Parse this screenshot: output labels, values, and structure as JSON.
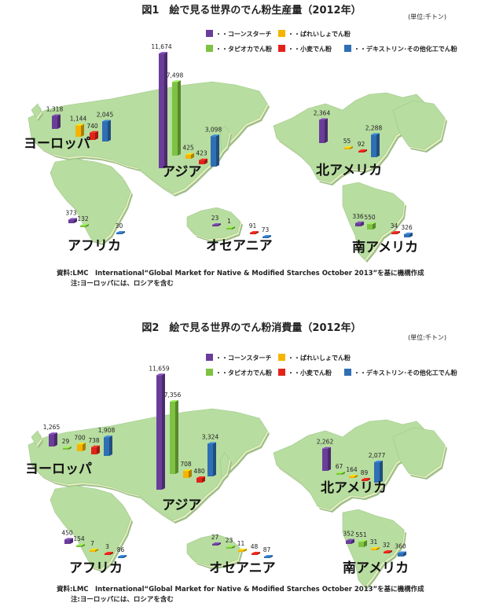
{
  "colors": {
    "corn": "#6a3d9a",
    "potato": "#f5b400",
    "tapioca": "#7dc242",
    "wheat": "#e2231a",
    "dextrin": "#2f6fb5",
    "land": "#b7dda0",
    "land_edge": "#e7efc0"
  },
  "legend": [
    {
      "key": "corn",
      "label": "・・コーンスターチ"
    },
    {
      "key": "potato",
      "label": "・・ばれいしょでん粉"
    },
    {
      "key": "tapioca",
      "label": "・・タピオカでん粉"
    },
    {
      "key": "wheat",
      "label": "・・小麦でん粉"
    },
    {
      "key": "dextrin",
      "label": "・・デキストリン･その他化工でん粉"
    }
  ],
  "regions": {
    "europe": "ヨーロッパ",
    "asia": "アジア",
    "north_america": "北アメリカ",
    "africa": "アフリカ",
    "oceania": "オセアニア",
    "south_america": "南アメリカ"
  },
  "chart_data": [
    {
      "type": "bar",
      "title": "図1　絵で見る世界のでん粉生産量（2012年）",
      "unit": "(単位:千トン)",
      "series_order": [
        "corn",
        "potato",
        "tapioca",
        "wheat",
        "dextrin"
      ],
      "groups": {
        "europe": {
          "corn": 1318,
          "potato": 1144,
          "wheat": 740,
          "dextrin": 2045
        },
        "asia": {
          "corn": 11674,
          "tapioca": 7498,
          "potato": 425,
          "wheat": 423,
          "dextrin": 3098
        },
        "north_america": {
          "corn": 2364,
          "potato": 55,
          "wheat": 92,
          "dextrin": 2288
        },
        "africa": {
          "corn": 373,
          "tapioca": 132,
          "dextrin": 30
        },
        "oceania": {
          "corn": 23,
          "tapioca": 1,
          "wheat": 91,
          "dextrin": 73
        },
        "south_america": {
          "corn": 336,
          "tapioca": 550,
          "wheat": 34,
          "dextrin": 326
        }
      },
      "labels": {
        "europe": {
          "corn": "1,318",
          "potato": "1,144",
          "wheat": "740",
          "dextrin": "2,045"
        },
        "asia": {
          "corn": "11,674",
          "tapioca": "7,498",
          "potato": "425",
          "wheat": "423",
          "dextrin": "3,098"
        },
        "north_america": {
          "corn": "2,364",
          "potato": "55",
          "wheat": "92",
          "dextrin": "2,288"
        },
        "africa": {
          "corn": "373",
          "tapioca": "132",
          "dextrin": "30"
        },
        "oceania": {
          "corn": "23",
          "tapioca": "1",
          "wheat": "91",
          "dextrin": "73"
        },
        "south_america": {
          "corn": "336",
          "tapioca": "550",
          "wheat": "34",
          "dextrin": "326"
        }
      },
      "source": "資料:LMC　International“Global Market for Native & Modified Starches October 2013”を基に機構作成",
      "note": "注:ヨーロッパには、ロシアを含む"
    },
    {
      "type": "bar",
      "title": "図2　絵で見る世界のでん粉消費量（2012年）",
      "unit": "(単位:千トン)",
      "series_order": [
        "corn",
        "potato",
        "tapioca",
        "wheat",
        "dextrin"
      ],
      "groups": {
        "europe": {
          "corn": 1265,
          "tapioca": 29,
          "potato": 700,
          "wheat": 738,
          "dextrin": 1908
        },
        "asia": {
          "corn": 11659,
          "tapioca": 7356,
          "potato": 708,
          "wheat": 480,
          "dextrin": 3324
        },
        "north_america": {
          "corn": 2262,
          "tapioca": 67,
          "potato": 164,
          "wheat": 89,
          "dextrin": 2077
        },
        "africa": {
          "corn": 450,
          "tapioca": 154,
          "potato": 7,
          "wheat": 3,
          "dextrin": 86
        },
        "oceania": {
          "corn": 27,
          "tapioca": 23,
          "potato": 11,
          "wheat": 48,
          "dextrin": 87
        },
        "south_america": {
          "corn": 352,
          "tapioca": 551,
          "potato": 31,
          "wheat": 32,
          "dextrin": 360
        }
      },
      "labels": {
        "europe": {
          "corn": "1,265",
          "tapioca": "29",
          "potato": "700",
          "wheat": "738",
          "dextrin": "1,908"
        },
        "asia": {
          "corn": "11,659",
          "tapioca": "7,356",
          "potato": "708",
          "wheat": "480",
          "dextrin": "3,324"
        },
        "north_america": {
          "corn": "2,262",
          "tapioca": "67",
          "potato": "164",
          "wheat": "89",
          "dextrin": "2,077"
        },
        "africa": {
          "corn": "450",
          "tapioca": "154",
          "potato": "7",
          "wheat": "3",
          "dextrin": "86"
        },
        "oceania": {
          "corn": "27",
          "tapioca": "23",
          "potato": "11",
          "wheat": "48",
          "dextrin": "87"
        },
        "south_america": {
          "corn": "352",
          "tapioca": "551",
          "potato": "31",
          "wheat": "32",
          "dextrin": "360"
        }
      },
      "source": "資料:LMC　International“Global Market for Native & Modified Starches October 2013”を基に機構作成",
      "note": "注:ヨーロッパには、ロシアを含む"
    }
  ]
}
